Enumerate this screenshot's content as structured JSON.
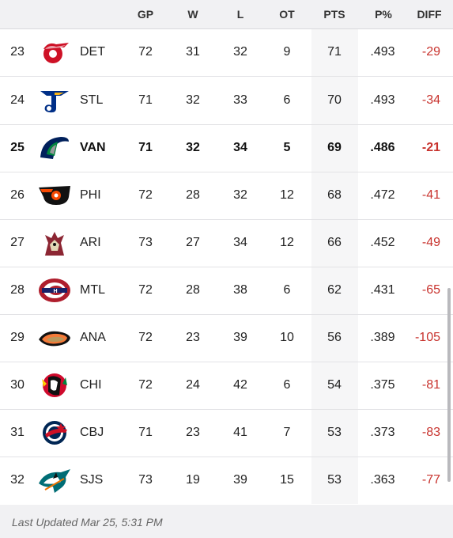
{
  "columns": {
    "gp": "GP",
    "w": "W",
    "l": "L",
    "ot": "OT",
    "pts": "PTS",
    "pct": "P%",
    "diff": "DIFF"
  },
  "rows": [
    {
      "rank": "23",
      "team": "DET",
      "logo": "red-wings-logo-icon",
      "gp": "72",
      "w": "31",
      "l": "32",
      "ot": "9",
      "pts": "71",
      "pct": ".493",
      "diff": "-29"
    },
    {
      "rank": "24",
      "team": "STL",
      "logo": "blues-logo-icon",
      "gp": "71",
      "w": "32",
      "l": "33",
      "ot": "6",
      "pts": "70",
      "pct": ".493",
      "diff": "-34"
    },
    {
      "rank": "25",
      "team": "VAN",
      "logo": "canucks-logo-icon",
      "gp": "71",
      "w": "32",
      "l": "34",
      "ot": "5",
      "pts": "69",
      "pct": ".486",
      "diff": "-21"
    },
    {
      "rank": "26",
      "team": "PHI",
      "logo": "flyers-logo-icon",
      "gp": "72",
      "w": "28",
      "l": "32",
      "ot": "12",
      "pts": "68",
      "pct": ".472",
      "diff": "-41"
    },
    {
      "rank": "27",
      "team": "ARI",
      "logo": "coyotes-logo-icon",
      "gp": "73",
      "w": "27",
      "l": "34",
      "ot": "12",
      "pts": "66",
      "pct": ".452",
      "diff": "-49"
    },
    {
      "rank": "28",
      "team": "MTL",
      "logo": "canadiens-logo-icon",
      "gp": "72",
      "w": "28",
      "l": "38",
      "ot": "6",
      "pts": "62",
      "pct": ".431",
      "diff": "-65"
    },
    {
      "rank": "29",
      "team": "ANA",
      "logo": "ducks-logo-icon",
      "gp": "72",
      "w": "23",
      "l": "39",
      "ot": "10",
      "pts": "56",
      "pct": ".389",
      "diff": "-105"
    },
    {
      "rank": "30",
      "team": "CHI",
      "logo": "blackhawks-logo-icon",
      "gp": "72",
      "w": "24",
      "l": "42",
      "ot": "6",
      "pts": "54",
      "pct": ".375",
      "diff": "-81"
    },
    {
      "rank": "31",
      "team": "CBJ",
      "logo": "blue-jackets-logo-icon",
      "gp": "71",
      "w": "23",
      "l": "41",
      "ot": "7",
      "pts": "53",
      "pct": ".373",
      "diff": "-83"
    },
    {
      "rank": "32",
      "team": "SJS",
      "logo": "sharks-logo-icon",
      "gp": "73",
      "w": "19",
      "l": "39",
      "ot": "15",
      "pts": "53",
      "pct": ".363",
      "diff": "-77"
    }
  ],
  "highlighted_team": "VAN",
  "footer": {
    "last_updated": "Last Updated Mar 25, 5:31 PM"
  },
  "colors": {
    "diff_negative": "#c8322d",
    "header_bg": "#f1f1f3",
    "pts_column_bg": "#f6f6f7"
  }
}
